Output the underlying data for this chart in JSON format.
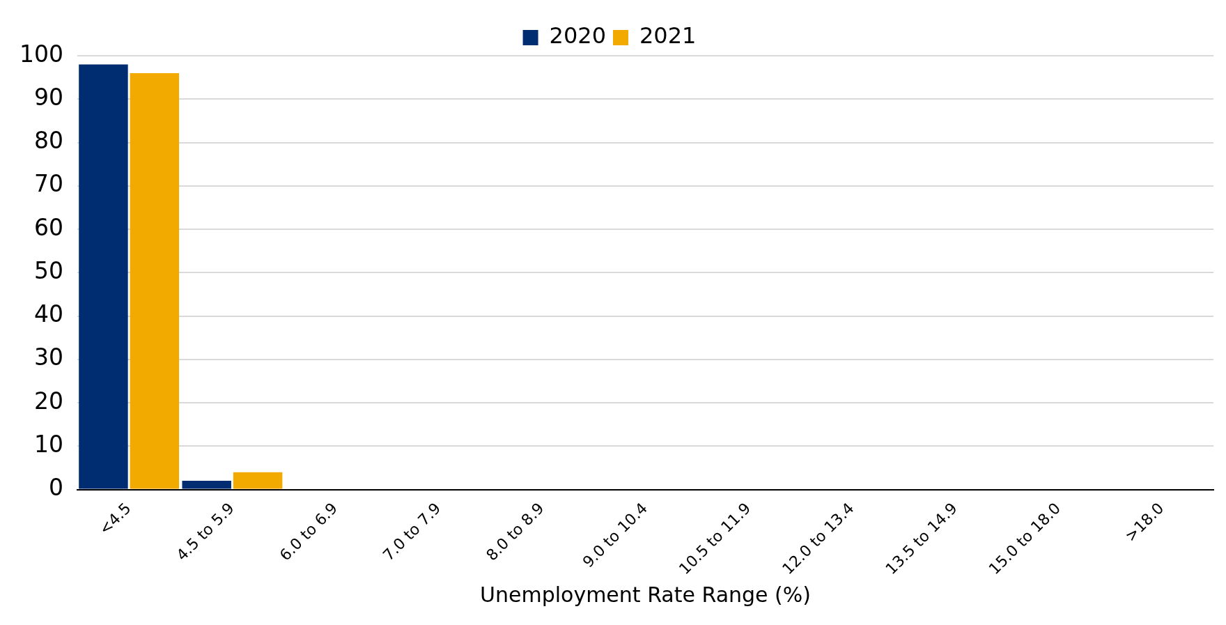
{
  "chart_data": {
    "type": "bar",
    "xlabel": "Unemployment Rate Range (%)",
    "categories": [
      "<4.5",
      "4.5 to 5.9",
      "6.0 to 6.9",
      "7.0 to 7.9",
      "8.0 to 8.9",
      "9.0 to 10.4",
      "10.5 to 11.9",
      "12.0 to 13.4",
      "13.5 to 14.9",
      "15.0 to 18.0",
      ">18.0"
    ],
    "series": [
      {
        "name": "2020",
        "color": "#002d72",
        "values": [
          98,
          2,
          0,
          0,
          0,
          0,
          0,
          0,
          0,
          0,
          0
        ]
      },
      {
        "name": "2021",
        "color": "#f2aa00",
        "values": [
          96,
          4,
          0,
          0,
          0,
          0,
          0,
          0,
          0,
          0,
          0
        ]
      }
    ],
    "ylim": [
      0,
      100
    ],
    "yticks": [
      0,
      10,
      20,
      30,
      40,
      50,
      60,
      70,
      80,
      90,
      100
    ],
    "grid": "y",
    "legend": "top"
  }
}
